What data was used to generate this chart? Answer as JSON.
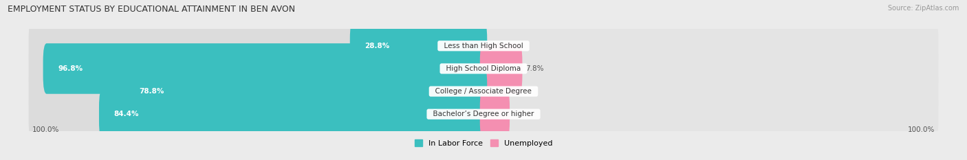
{
  "title": "EMPLOYMENT STATUS BY EDUCATIONAL ATTAINMENT IN BEN AVON",
  "source": "Source: ZipAtlas.com",
  "categories": [
    "Less than High School",
    "High School Diploma",
    "College / Associate Degree",
    "Bachelor’s Degree or higher"
  ],
  "labor_force": [
    28.8,
    96.8,
    78.8,
    84.4
  ],
  "unemployed": [
    0.0,
    7.8,
    0.0,
    5.0
  ],
  "labor_color": "#3bbfbf",
  "unemployed_color": "#f48fb1",
  "bg_color": "#ebebeb",
  "bar_bg_color": "#dcdcdc",
  "bar_bg_color2": "#e4e4e4",
  "axis_label_left": "100.0%",
  "axis_label_right": "100.0%",
  "max_val": 100.0,
  "legend_labor": "In Labor Force",
  "legend_unemployed": "Unemployed",
  "label_color": "#555555",
  "value_white": "#ffffff",
  "value_dark": "#555555"
}
